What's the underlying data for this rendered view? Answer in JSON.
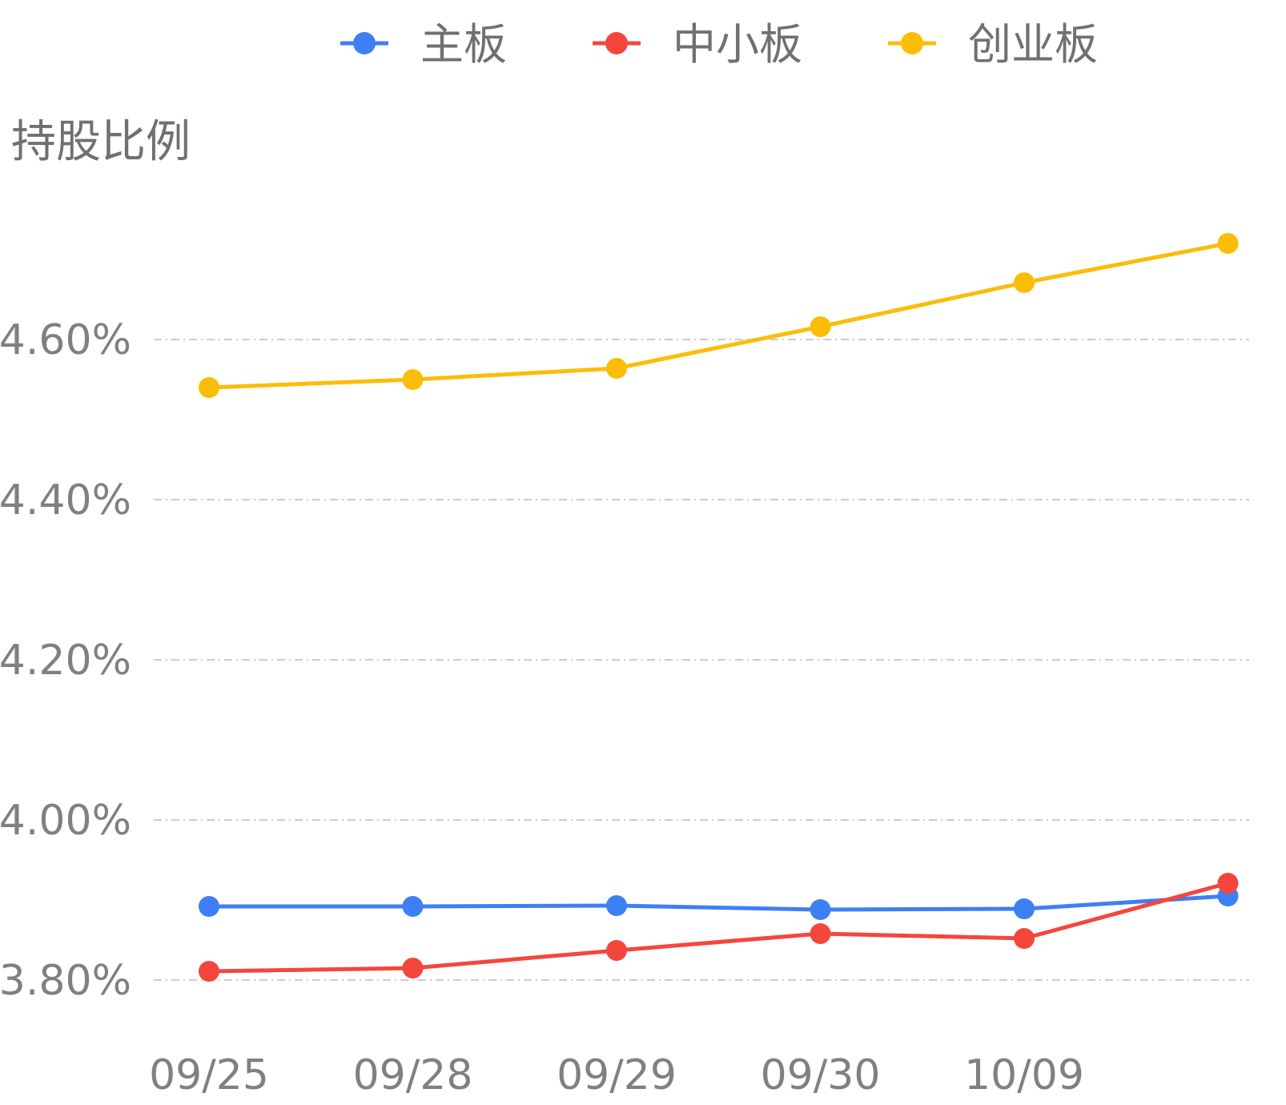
{
  "chart_data": {
    "type": "line",
    "ylabel": "持股比例",
    "categories": [
      "09/25",
      "09/28",
      "09/29",
      "09/30",
      "10/09",
      ""
    ],
    "ylim": [
      3.7,
      4.8
    ],
    "yticks": [
      3.8,
      4.0,
      4.2,
      4.4,
      4.6
    ],
    "ytick_labels": [
      "3.80%",
      "4.00%",
      "4.20%",
      "4.40%",
      "4.60%"
    ],
    "grid": "horizontal-dashed",
    "legend_position": "top-center",
    "series": [
      {
        "name": "主板",
        "color": "#3d7ff5",
        "values": [
          3.892,
          3.892,
          3.893,
          3.888,
          3.889,
          3.905
        ]
      },
      {
        "name": "中小板",
        "color": "#f5463d",
        "values": [
          3.811,
          3.815,
          3.837,
          3.858,
          3.852,
          3.921
        ]
      },
      {
        "name": "创业板",
        "color": "#fbbd08",
        "values": [
          4.54,
          4.55,
          4.564,
          4.616,
          4.671,
          4.72
        ]
      }
    ]
  }
}
